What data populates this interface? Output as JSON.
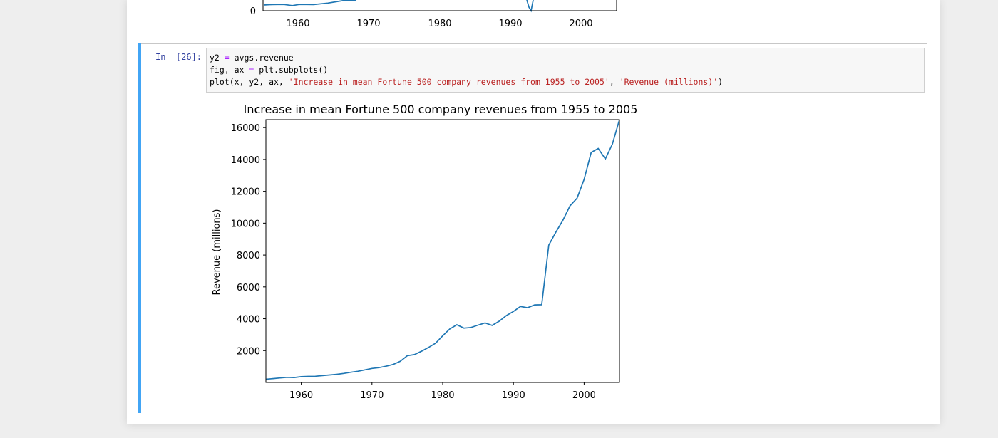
{
  "prev_output": {
    "y_tick_zero": "0",
    "x_ticks": [
      "1960",
      "1970",
      "1980",
      "1990",
      "2000"
    ]
  },
  "cell": {
    "prompt": "In  [26]:",
    "code": {
      "line1": {
        "a": "y2 ",
        "op": "=",
        "b": " avgs.revenue"
      },
      "line2": {
        "a": "fig, ax ",
        "op": "=",
        "b": " plt.subplots()"
      },
      "line3": {
        "a": "plot(x, y2, ax, ",
        "s1": "'Increase in mean Fortune 500 company revenues from 1955 to 2005'",
        "mid": ", ",
        "s2": "'Revenue (millions)'",
        "c": ")"
      }
    }
  },
  "chart_data": {
    "type": "line",
    "title": "Increase in mean Fortune 500 company revenues from 1955 to 2005",
    "xlabel": "",
    "ylabel": "Revenue (millions)",
    "xlim": [
      1955,
      2005
    ],
    "ylim": [
      0,
      16500
    ],
    "x_ticks": [
      1960,
      1970,
      1980,
      1990,
      2000
    ],
    "y_ticks": [
      2000,
      4000,
      6000,
      8000,
      10000,
      12000,
      14000,
      16000
    ],
    "grid": false,
    "line_color": "#1f77b4",
    "x": [
      1955,
      1956,
      1957,
      1958,
      1959,
      1960,
      1961,
      1962,
      1963,
      1964,
      1965,
      1966,
      1967,
      1968,
      1969,
      1970,
      1971,
      1972,
      1973,
      1974,
      1975,
      1976,
      1977,
      1978,
      1979,
      1980,
      1981,
      1982,
      1983,
      1984,
      1985,
      1986,
      1987,
      1988,
      1989,
      1990,
      1991,
      1992,
      1993,
      1994,
      1995,
      1996,
      1997,
      1998,
      1999,
      2000,
      2001,
      2002,
      2003,
      2004,
      2005
    ],
    "y": [
      200,
      240,
      280,
      320,
      310,
      360,
      380,
      390,
      430,
      470,
      510,
      570,
      640,
      700,
      790,
      880,
      930,
      1020,
      1130,
      1330,
      1680,
      1750,
      1960,
      2200,
      2470,
      2930,
      3360,
      3620,
      3410,
      3450,
      3600,
      3740,
      3580,
      3850,
      4200,
      4460,
      4770,
      4690,
      4870,
      4880,
      8620,
      9430,
      10180,
      11090,
      11570,
      12750,
      14440,
      14690,
      14030,
      14970,
      16500
    ]
  }
}
